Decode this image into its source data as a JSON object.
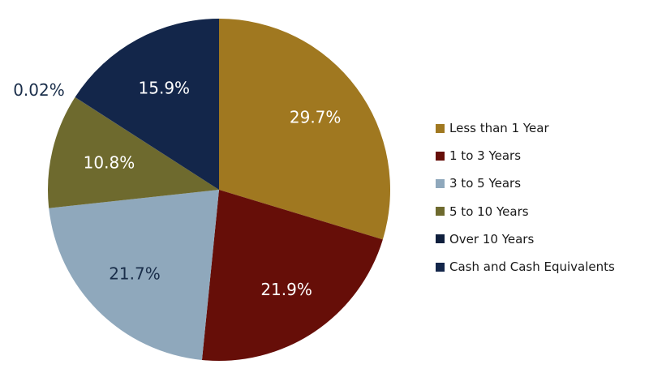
{
  "chart_data": {
    "type": "pie",
    "start_angle_deg": 0,
    "direction": "clockwise",
    "legend_position": "right",
    "slices": [
      {
        "name": "Less than 1 Year",
        "value": 29.7,
        "label": "29.7%",
        "color": "#A07820",
        "label_color": "#ffffff"
      },
      {
        "name": "1 to 3 Years",
        "value": 21.9,
        "label": "21.9%",
        "color": "#660E08",
        "label_color": "#ffffff"
      },
      {
        "name": "3 to 5 Years",
        "value": 21.7,
        "label": "21.7%",
        "color": "#8FA8BC",
        "label_color": "#1a2e4a"
      },
      {
        "name": "5 to 10 Years",
        "value": 10.8,
        "label": "10.8%",
        "color": "#6E6A2E",
        "label_color": "#ffffff"
      },
      {
        "name": "Over 10 Years",
        "value": 0.02,
        "label": "0.02%",
        "color": "#0F1F3D",
        "label_color": "#1a2e4a"
      },
      {
        "name": "Cash and Cash Equivalents",
        "value": 15.9,
        "label": "15.9%",
        "color": "#13264A",
        "label_color": "#ffffff"
      }
    ]
  }
}
